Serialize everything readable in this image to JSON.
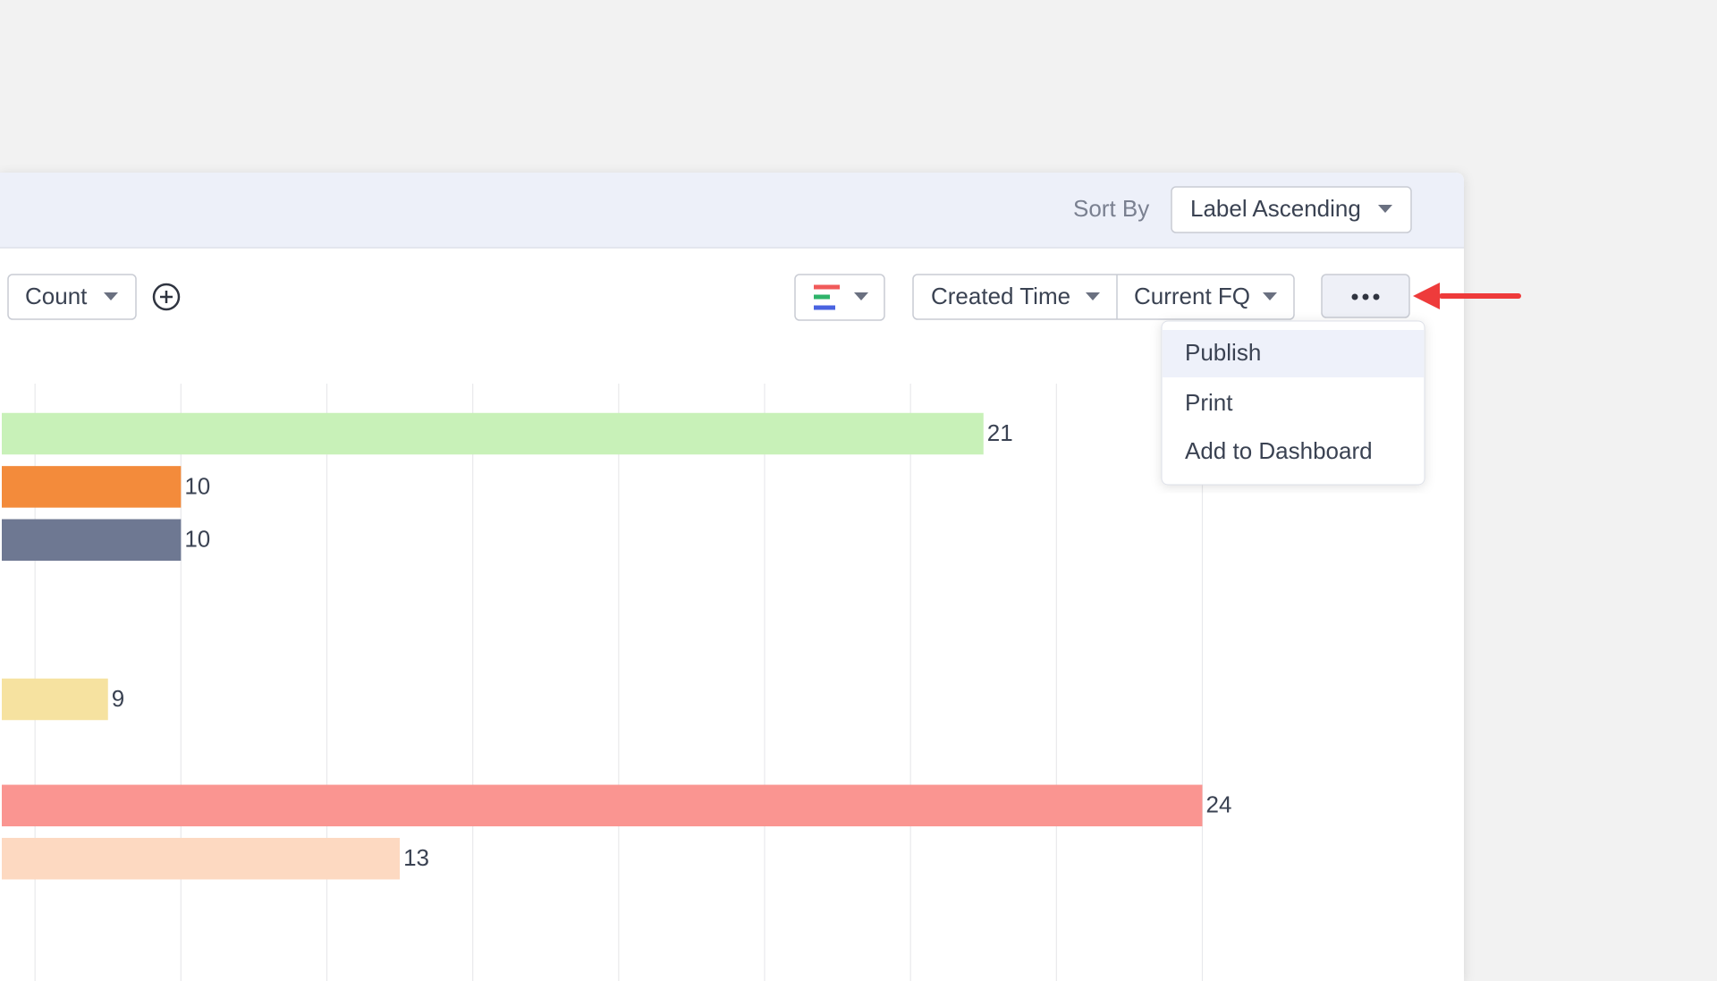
{
  "header": {
    "sort_label": "Sort By",
    "sort_value": "Label Ascending"
  },
  "toolbar": {
    "measure": "Count",
    "field": "Created Time",
    "period": "Current FQ"
  },
  "menu": {
    "items": [
      "Publish",
      "Print",
      "Add to Dashboard"
    ]
  },
  "chart_data": {
    "type": "bar",
    "orientation": "horizontal",
    "categories": [
      null,
      null,
      null,
      null,
      null,
      null,
      null,
      null,
      null
    ],
    "values": [
      21,
      10,
      10,
      null,
      null,
      9,
      null,
      24,
      13
    ],
    "colors": [
      "#c8f1b8",
      "#f38b3b",
      "#6e7892",
      null,
      null,
      "#f6e2a0",
      null,
      "#fa9591",
      "#fdd9c1"
    ],
    "xlim": [
      0,
      24
    ],
    "xticks": [
      8,
      10,
      12,
      14,
      16,
      18,
      20,
      22,
      24
    ],
    "grid": true
  }
}
